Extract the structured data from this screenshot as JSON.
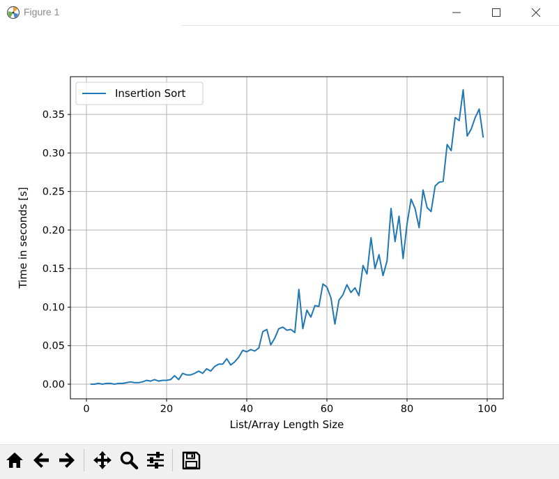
{
  "window": {
    "title": "Figure 1",
    "icon": "matplotlib-logo-icon",
    "controls": [
      "minimize-icon",
      "maximize-icon",
      "close-icon"
    ]
  },
  "toolbar": {
    "buttons": [
      {
        "name": "home",
        "icon": "home-icon"
      },
      {
        "name": "back",
        "icon": "arrow-left-icon"
      },
      {
        "name": "forward",
        "icon": "arrow-right-icon"
      },
      {
        "name": "pan",
        "icon": "move-icon"
      },
      {
        "name": "zoom",
        "icon": "magnifier-icon"
      },
      {
        "name": "subplots",
        "icon": "sliders-icon"
      },
      {
        "name": "save",
        "icon": "floppy-disk-icon"
      }
    ]
  },
  "colors": {
    "series": "#1f77b4",
    "grid": "#b0b0b0",
    "toolbar_bg": "#f0f0f0"
  },
  "chart_data": {
    "type": "line",
    "title": "",
    "xlabel": "List/Array Length Size",
    "ylabel": "Time in seconds [s]",
    "xlim": [
      -4,
      104
    ],
    "ylim": [
      -0.019,
      0.399
    ],
    "xticks": [
      0,
      20,
      40,
      60,
      80,
      100
    ],
    "yticks": [
      0.0,
      0.05,
      0.1,
      0.15,
      0.2,
      0.25,
      0.3,
      0.35
    ],
    "xtick_labels": [
      "0",
      "20",
      "40",
      "60",
      "80",
      "100"
    ],
    "ytick_labels": [
      "0.00",
      "0.05",
      "0.10",
      "0.15",
      "0.20",
      "0.25",
      "0.30",
      "0.35"
    ],
    "grid": true,
    "legend_position": "upper-left",
    "series": [
      {
        "name": "Insertion Sort",
        "color": "#1f77b4",
        "x": [
          1,
          2,
          3,
          4,
          5,
          6,
          7,
          8,
          9,
          10,
          11,
          12,
          13,
          14,
          15,
          16,
          17,
          18,
          19,
          20,
          21,
          22,
          23,
          24,
          25,
          26,
          27,
          28,
          29,
          30,
          31,
          32,
          33,
          34,
          35,
          36,
          37,
          38,
          39,
          40,
          41,
          42,
          43,
          44,
          45,
          46,
          47,
          48,
          49,
          50,
          51,
          52,
          53,
          54,
          55,
          56,
          57,
          58,
          59,
          60,
          61,
          62,
          63,
          64,
          65,
          66,
          67,
          68,
          69,
          70,
          71,
          72,
          73,
          74,
          75,
          76,
          77,
          78,
          79,
          80,
          81,
          82,
          83,
          84,
          85,
          86,
          87,
          88,
          89,
          90,
          91,
          92,
          93,
          94,
          95,
          96,
          97,
          98,
          99
        ],
        "y": [
          0.0,
          0.0,
          0.001,
          0.0,
          0.001,
          0.001,
          0.0,
          0.001,
          0.001,
          0.002,
          0.003,
          0.002,
          0.002,
          0.003,
          0.005,
          0.004,
          0.006,
          0.004,
          0.005,
          0.005,
          0.006,
          0.011,
          0.006,
          0.014,
          0.012,
          0.012,
          0.014,
          0.017,
          0.014,
          0.02,
          0.017,
          0.023,
          0.026,
          0.026,
          0.033,
          0.025,
          0.029,
          0.035,
          0.044,
          0.042,
          0.045,
          0.043,
          0.047,
          0.068,
          0.071,
          0.051,
          0.06,
          0.072,
          0.074,
          0.07,
          0.071,
          0.067,
          0.123,
          0.072,
          0.096,
          0.087,
          0.102,
          0.101,
          0.13,
          0.126,
          0.112,
          0.078,
          0.109,
          0.116,
          0.129,
          0.119,
          0.125,
          0.115,
          0.154,
          0.143,
          0.19,
          0.15,
          0.168,
          0.141,
          0.16,
          0.228,
          0.185,
          0.218,
          0.163,
          0.208,
          0.24,
          0.228,
          0.203,
          0.252,
          0.229,
          0.224,
          0.257,
          0.262,
          0.263,
          0.311,
          0.303,
          0.346,
          0.342,
          0.382,
          0.322,
          0.331,
          0.346,
          0.357,
          0.32
        ]
      }
    ]
  }
}
